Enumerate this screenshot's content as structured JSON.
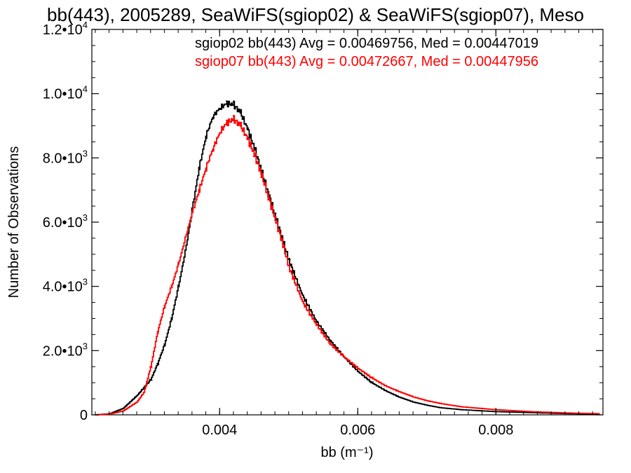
{
  "chart_data": {
    "type": "line",
    "title": "bb(443), 2005289, SeaWiFS(sgiop02) & SeaWiFS(sgiop07), Meso",
    "xlabel": "bb (m⁻¹)",
    "ylabel": "Number of Observations",
    "xlim": [
      0.00215,
      0.00955
    ],
    "ylim": [
      0,
      12000
    ],
    "x_ticks": [
      0.004,
      0.006,
      0.008
    ],
    "x_tick_labels": [
      "0.004",
      "0.006",
      "0.008"
    ],
    "y_ticks": [
      {
        "value": 0,
        "mant": "0",
        "exp": ""
      },
      {
        "value": 2000,
        "mant": "2.0•10",
        "exp": "3"
      },
      {
        "value": 4000,
        "mant": "4.0•10",
        "exp": "3"
      },
      {
        "value": 6000,
        "mant": "6.0•10",
        "exp": "3"
      },
      {
        "value": 8000,
        "mant": "8.0•10",
        "exp": "3"
      },
      {
        "value": 10000,
        "mant": "1.0•10",
        "exp": "4"
      },
      {
        "value": 12000,
        "mant": "1.2•10",
        "exp": "4"
      }
    ],
    "grid": false,
    "step": true,
    "annotations": [
      {
        "text": "sgiop02 bb(443) Avg = 0.00469756, Med = 0.00447019",
        "color": "#000000"
      },
      {
        "text": "sgiop07 bb(443) Avg = 0.00472667, Med = 0.00447956",
        "color": "#ff0000"
      }
    ],
    "series": [
      {
        "name": "sgiop02",
        "color": "#000000",
        "points": [
          [
            0.0022,
            0
          ],
          [
            0.0024,
            30
          ],
          [
            0.0026,
            200
          ],
          [
            0.0028,
            600
          ],
          [
            0.003,
            1100
          ],
          [
            0.0031,
            1600
          ],
          [
            0.0032,
            2200
          ],
          [
            0.0033,
            3000
          ],
          [
            0.0034,
            4000
          ],
          [
            0.0035,
            5100
          ],
          [
            0.0036,
            6400
          ],
          [
            0.0037,
            7700
          ],
          [
            0.0038,
            8700
          ],
          [
            0.0039,
            9300
          ],
          [
            0.004,
            9550
          ],
          [
            0.0041,
            9700
          ],
          [
            0.0042,
            9650
          ],
          [
            0.0043,
            9400
          ],
          [
            0.0044,
            8900
          ],
          [
            0.0045,
            8300
          ],
          [
            0.0046,
            7600
          ],
          [
            0.0047,
            6900
          ],
          [
            0.0048,
            6200
          ],
          [
            0.0049,
            5500
          ],
          [
            0.005,
            4800
          ],
          [
            0.0052,
            3700
          ],
          [
            0.0054,
            2900
          ],
          [
            0.0056,
            2300
          ],
          [
            0.0058,
            1800
          ],
          [
            0.006,
            1350
          ],
          [
            0.0062,
            1000
          ],
          [
            0.0064,
            750
          ],
          [
            0.0066,
            550
          ],
          [
            0.0068,
            400
          ],
          [
            0.007,
            300
          ],
          [
            0.0072,
            220
          ],
          [
            0.0075,
            160
          ],
          [
            0.008,
            100
          ],
          [
            0.0085,
            70
          ],
          [
            0.009,
            40
          ],
          [
            0.0095,
            20
          ]
        ]
      },
      {
        "name": "sgiop07",
        "color": "#ff0000",
        "points": [
          [
            0.0022,
            0
          ],
          [
            0.0024,
            20
          ],
          [
            0.0026,
            120
          ],
          [
            0.0028,
            400
          ],
          [
            0.0029,
            700
          ],
          [
            0.003,
            1500
          ],
          [
            0.0031,
            2600
          ],
          [
            0.0032,
            3400
          ],
          [
            0.0033,
            4000
          ],
          [
            0.0034,
            4700
          ],
          [
            0.0035,
            5500
          ],
          [
            0.0036,
            6300
          ],
          [
            0.0037,
            7000
          ],
          [
            0.0038,
            7700
          ],
          [
            0.0039,
            8300
          ],
          [
            0.004,
            8800
          ],
          [
            0.0041,
            9100
          ],
          [
            0.0042,
            9200
          ],
          [
            0.0043,
            9000
          ],
          [
            0.0044,
            8600
          ],
          [
            0.0045,
            8100
          ],
          [
            0.0046,
            7500
          ],
          [
            0.0047,
            6800
          ],
          [
            0.0048,
            6100
          ],
          [
            0.0049,
            5400
          ],
          [
            0.005,
            4600
          ],
          [
            0.0052,
            3500
          ],
          [
            0.0054,
            2800
          ],
          [
            0.0056,
            2200
          ],
          [
            0.0058,
            1800
          ],
          [
            0.006,
            1450
          ],
          [
            0.0062,
            1150
          ],
          [
            0.0064,
            900
          ],
          [
            0.0066,
            720
          ],
          [
            0.0068,
            560
          ],
          [
            0.007,
            440
          ],
          [
            0.0072,
            350
          ],
          [
            0.0075,
            250
          ],
          [
            0.008,
            160
          ],
          [
            0.0085,
            100
          ],
          [
            0.009,
            60
          ],
          [
            0.0095,
            35
          ]
        ]
      }
    ]
  }
}
